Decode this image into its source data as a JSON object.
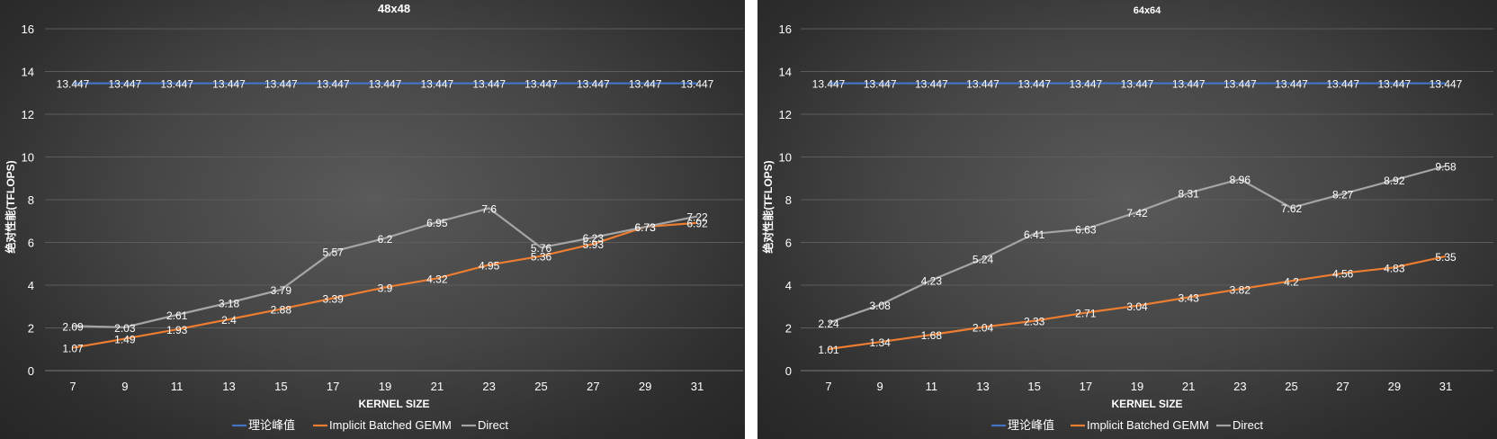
{
  "chart_data": [
    {
      "type": "line",
      "title": "48x48",
      "xlabel": "KERNEL SIZE",
      "ylabel": "绝对性能(TFLOPS)",
      "ylim": [
        0,
        16
      ],
      "yticks": [
        0,
        2,
        4,
        6,
        8,
        10,
        12,
        14,
        16
      ],
      "grid": true,
      "legend_position": "bottom",
      "categories": [
        "7",
        "9",
        "11",
        "13",
        "15",
        "17",
        "19",
        "21",
        "23",
        "25",
        "27",
        "29",
        "31"
      ],
      "series": [
        {
          "name": "理论峰值",
          "color": "#4472c4",
          "values": [
            13.447,
            13.447,
            13.447,
            13.447,
            13.447,
            13.447,
            13.447,
            13.447,
            13.447,
            13.447,
            13.447,
            13.447,
            13.447
          ]
        },
        {
          "name": "Implicit Batched GEMM",
          "color": "#ed7d31",
          "values": [
            1.07,
            1.49,
            1.93,
            2.4,
            2.88,
            3.39,
            3.9,
            4.32,
            4.95,
            5.36,
            5.93,
            6.73,
            6.92
          ]
        },
        {
          "name": "Direct",
          "color": "#a5a5a5",
          "values": [
            2.09,
            2.03,
            2.61,
            3.18,
            3.79,
            5.57,
            6.2,
            6.95,
            7.6,
            5.76,
            6.23,
            6.73,
            7.22
          ]
        }
      ]
    },
    {
      "type": "line",
      "title": "64x64",
      "xlabel": "KERNEL SIZE",
      "ylabel": "绝对性能(TFLOPS)",
      "ylim": [
        0,
        16
      ],
      "yticks": [
        0,
        2,
        4,
        6,
        8,
        10,
        12,
        14,
        16
      ],
      "grid": true,
      "legend_position": "bottom",
      "categories": [
        "7",
        "9",
        "11",
        "13",
        "15",
        "17",
        "19",
        "21",
        "23",
        "25",
        "27",
        "29",
        "31"
      ],
      "series": [
        {
          "name": "理论峰值",
          "color": "#4472c4",
          "values": [
            13.447,
            13.447,
            13.447,
            13.447,
            13.447,
            13.447,
            13.447,
            13.447,
            13.447,
            13.447,
            13.447,
            13.447,
            13.447
          ]
        },
        {
          "name": "Implicit Batched GEMM",
          "color": "#ed7d31",
          "values": [
            1.01,
            1.34,
            1.68,
            2.04,
            2.33,
            2.71,
            3.04,
            3.43,
            3.82,
            4.2,
            4.56,
            4.83,
            5.35
          ]
        },
        {
          "name": "Direct",
          "color": "#a5a5a5",
          "values": [
            2.24,
            3.08,
            4.23,
            5.24,
            6.41,
            6.63,
            7.42,
            8.31,
            8.96,
            7.62,
            8.27,
            8.92,
            9.58
          ]
        }
      ]
    }
  ]
}
